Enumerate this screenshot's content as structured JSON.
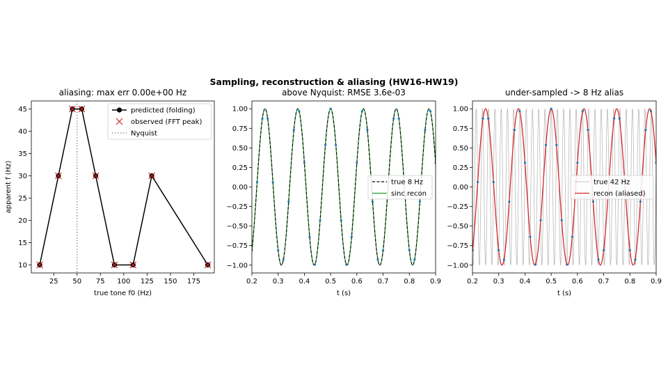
{
  "figure": {
    "suptitle": "Sampling, reconstruction & aliasing (HW16-HW19)"
  },
  "chart_data": [
    {
      "type": "line",
      "title": "aliasing: max err 0.00e+00 Hz",
      "xlabel": "true tone f0 (Hz)",
      "ylabel": "apparent f (Hz)",
      "xlim": [
        1,
        197
      ],
      "ylim": [
        8.2,
        46.8
      ],
      "xticks": [
        25,
        50,
        75,
        100,
        125,
        150,
        175
      ],
      "yticks": [
        10,
        15,
        20,
        25,
        30,
        35,
        40,
        45
      ],
      "nyquist": 50,
      "legend_position": "top-right",
      "legend": [
        "predicted (folding)",
        "observed (FFT peak)",
        "Nyquist"
      ],
      "series": [
        {
          "name": "predicted (folding)",
          "x": [
            10,
            30,
            45,
            55,
            70,
            90,
            110,
            130,
            190
          ],
          "y": [
            10,
            30,
            45,
            45,
            30,
            10,
            10,
            30,
            10
          ],
          "color": "#000000"
        },
        {
          "name": "observed (FFT peak)",
          "x": [
            10,
            30,
            45,
            55,
            70,
            90,
            110,
            130,
            190
          ],
          "y": [
            10,
            30,
            45,
            45,
            30,
            10,
            10,
            30,
            10
          ],
          "color": "#d62728"
        }
      ]
    },
    {
      "type": "line",
      "title": "above Nyquist: RMSE 3.6e-03",
      "xlabel": "t (s)",
      "ylabel": "",
      "xlim": [
        0.2,
        0.9
      ],
      "ylim": [
        -1.1,
        1.1
      ],
      "xticks": [
        0.2,
        0.3,
        0.4,
        0.5,
        0.6,
        0.7,
        0.8,
        0.9
      ],
      "yticks": [
        -1.0,
        -0.75,
        -0.5,
        -0.25,
        0.0,
        0.25,
        0.5,
        0.75,
        1.0
      ],
      "legend_position": "center-right",
      "legend": [
        "true 8 Hz",
        "sinc recon"
      ],
      "true_freq_hz": 8,
      "sample_rate_hz": 50,
      "series": [
        {
          "name": "true 8 Hz",
          "freq_hz": 8,
          "color": "#000000",
          "style": "dashed"
        },
        {
          "name": "sinc recon",
          "freq_hz": 8,
          "color": "#2ca02c",
          "style": "solid"
        }
      ],
      "samples_color": "#1f77b4"
    },
    {
      "type": "line",
      "title": "under-sampled -> 8 Hz alias",
      "xlabel": "t (s)",
      "ylabel": "",
      "xlim": [
        0.2,
        0.9
      ],
      "ylim": [
        -1.1,
        1.1
      ],
      "xticks": [
        0.2,
        0.3,
        0.4,
        0.5,
        0.6,
        0.7,
        0.8,
        0.9
      ],
      "yticks": [
        -1.0,
        -0.75,
        -0.5,
        -0.25,
        0.0,
        0.25,
        0.5,
        0.75,
        1.0
      ],
      "legend_position": "center-right",
      "legend": [
        "true 42 Hz",
        "recon (aliased)"
      ],
      "sample_rate_hz": 50,
      "series": [
        {
          "name": "true 42 Hz",
          "freq_hz": 42,
          "color": "#b0b0b0",
          "style": "solid"
        },
        {
          "name": "recon (aliased)",
          "freq_hz": 8,
          "color": "#d62728",
          "style": "solid"
        }
      ],
      "samples_color": "#1f77b4"
    }
  ]
}
